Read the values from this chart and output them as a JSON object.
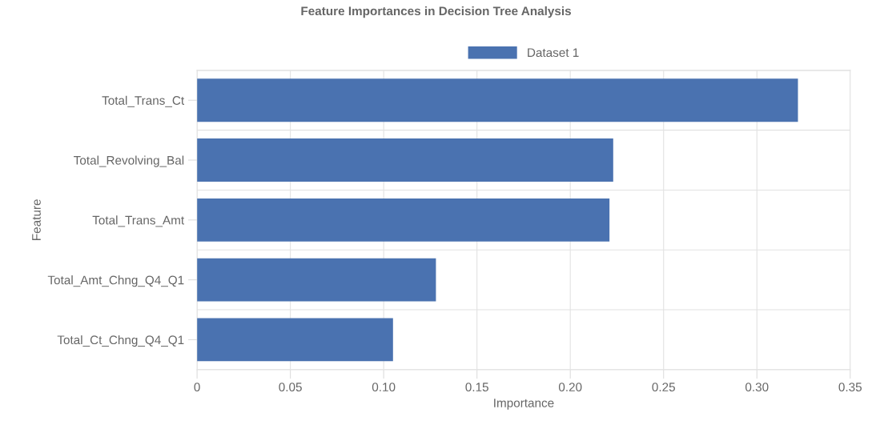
{
  "chart_data": {
    "type": "bar",
    "orientation": "horizontal",
    "title": "Feature Importances in Decision Tree Analysis",
    "xlabel": "Importance",
    "ylabel": "Feature",
    "categories": [
      "Total_Trans_Ct",
      "Total_Revolving_Bal",
      "Total_Trans_Amt",
      "Total_Amt_Chng_Q4_Q1",
      "Total_Ct_Chng_Q4_Q1"
    ],
    "series": [
      {
        "name": "Dataset 1",
        "color": "#4a72b0",
        "values": [
          0.322,
          0.223,
          0.221,
          0.128,
          0.105
        ]
      }
    ],
    "xlim": [
      0,
      0.35
    ],
    "xticks": [
      {
        "value": 0,
        "label": "0"
      },
      {
        "value": 0.05,
        "label": "0.05"
      },
      {
        "value": 0.1,
        "label": "0.10"
      },
      {
        "value": 0.15,
        "label": "0.15"
      },
      {
        "value": 0.2,
        "label": "0.20"
      },
      {
        "value": 0.25,
        "label": "0.25"
      },
      {
        "value": 0.3,
        "label": "0.30"
      },
      {
        "value": 0.35,
        "label": "0.35"
      }
    ],
    "grid": true,
    "legend": "top"
  }
}
